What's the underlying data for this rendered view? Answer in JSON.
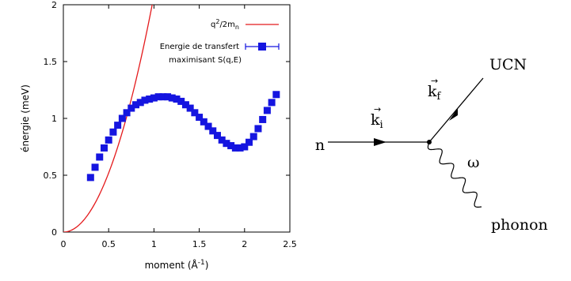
{
  "chart_data": {
    "type": "scatter",
    "title": "",
    "xlabel_base": "moment (Å",
    "xlabel_exp": "-1",
    "xlabel_close": ")",
    "ylabel": "énergie (meV)",
    "xlim": [
      0,
      2.5
    ],
    "ylim": [
      0,
      2
    ],
    "x_ticks": [
      0,
      0.5,
      1,
      1.5,
      2,
      2.5
    ],
    "y_ticks": [
      0,
      0.5,
      1,
      1.5,
      2
    ],
    "x_tick_labels": [
      "0",
      "0.5",
      "1",
      "1.5",
      "2",
      "2.5"
    ],
    "y_tick_labels": [
      "0",
      "0.5",
      "1",
      "1.5",
      "2"
    ],
    "legend_position": "top-right",
    "series": [
      {
        "name_base": "q",
        "name_sup": "2",
        "name_mid": "/2m",
        "name_sub": "n",
        "type": "line",
        "color": "#e41a1c",
        "coefficient": 2.08
      },
      {
        "name_line1": "Energie de transfert",
        "name_line2": "maximisant S(q,E)",
        "type": "scatter",
        "color": "#1515e0",
        "x": [
          0.3,
          0.35,
          0.4,
          0.45,
          0.5,
          0.55,
          0.6,
          0.65,
          0.7,
          0.75,
          0.8,
          0.85,
          0.9,
          0.95,
          1.0,
          1.05,
          1.1,
          1.15,
          1.2,
          1.25,
          1.3,
          1.35,
          1.4,
          1.45,
          1.5,
          1.55,
          1.6,
          1.65,
          1.7,
          1.75,
          1.8,
          1.85,
          1.9,
          1.95,
          2.0,
          2.05,
          2.1,
          2.15,
          2.2,
          2.25,
          2.3,
          2.35
        ],
        "y": [
          0.48,
          0.57,
          0.66,
          0.74,
          0.81,
          0.88,
          0.94,
          1.0,
          1.05,
          1.09,
          1.12,
          1.14,
          1.16,
          1.17,
          1.18,
          1.19,
          1.19,
          1.19,
          1.18,
          1.17,
          1.15,
          1.12,
          1.09,
          1.05,
          1.01,
          0.97,
          0.93,
          0.89,
          0.85,
          0.81,
          0.78,
          0.76,
          0.74,
          0.74,
          0.75,
          0.79,
          0.84,
          0.91,
          0.99,
          1.07,
          1.14,
          1.21
        ]
      }
    ]
  },
  "diagram": {
    "n_label": "n",
    "ki_label": "k",
    "ki_sub": "i",
    "kf_label": "k",
    "kf_sub": "f",
    "ucn_label": "UCN",
    "omega_label": "ω",
    "phonon_label": "phonon",
    "vector_arrow": "→"
  }
}
